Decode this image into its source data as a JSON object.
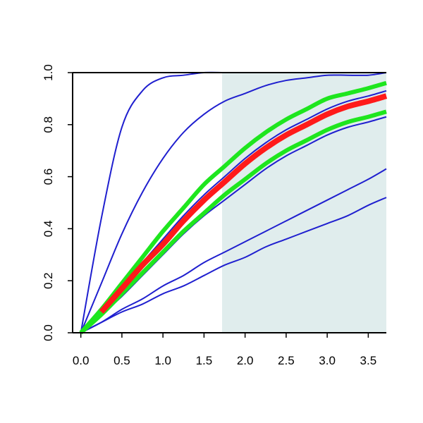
{
  "chart_data": {
    "type": "line",
    "title": "",
    "xlabel": "",
    "ylabel": "",
    "xlim": [
      -0.1,
      3.72
    ],
    "ylim": [
      0.0,
      1.0
    ],
    "grid": false,
    "legend": "none",
    "x_ticks": [
      "0.0",
      "0.5",
      "1.0",
      "1.5",
      "2.0",
      "2.5",
      "3.0",
      "3.5"
    ],
    "y_ticks": [
      "0.0",
      "0.2",
      "0.4",
      "0.6",
      "0.8",
      "1.0"
    ],
    "shaded_region": {
      "x_from": 1.72,
      "x_to": 3.72,
      "color": "#e0eded"
    },
    "colors": {
      "blue": "#1f1fcf",
      "red": "#ff1a1a",
      "green": "#1ee61e",
      "axis": "#000000"
    },
    "x": [
      0.0,
      0.25,
      0.5,
      0.75,
      1.0,
      1.25,
      1.5,
      1.75,
      2.0,
      2.25,
      2.5,
      2.75,
      3.0,
      3.25,
      3.5,
      3.72
    ],
    "series": [
      {
        "color": "blue",
        "width": 2,
        "values": [
          0.0,
          0.44,
          0.79,
          0.93,
          0.98,
          0.99,
          1.0,
          1.0,
          1.0,
          1.0,
          1.0,
          1.0,
          1.0,
          1.0,
          1.0,
          1.0
        ]
      },
      {
        "color": "blue",
        "width": 2,
        "values": [
          0.0,
          0.19,
          0.38,
          0.54,
          0.67,
          0.77,
          0.84,
          0.89,
          0.92,
          0.95,
          0.97,
          0.98,
          0.99,
          0.99,
          0.99,
          1.0
        ]
      },
      {
        "color": "blue",
        "width": 2,
        "values": [
          0.0,
          0.08,
          0.18,
          0.27,
          0.36,
          0.45,
          0.53,
          0.6,
          0.67,
          0.73,
          0.78,
          0.82,
          0.86,
          0.89,
          0.91,
          0.93
        ]
      },
      {
        "color": "blue",
        "width": 2,
        "values": [
          0.0,
          0.07,
          0.14,
          0.22,
          0.3,
          0.38,
          0.45,
          0.51,
          0.57,
          0.63,
          0.68,
          0.72,
          0.76,
          0.79,
          0.81,
          0.83
        ]
      },
      {
        "color": "blue",
        "width": 2,
        "values": [
          0.0,
          0.04,
          0.09,
          0.13,
          0.18,
          0.22,
          0.27,
          0.31,
          0.35,
          0.39,
          0.43,
          0.47,
          0.51,
          0.55,
          0.59,
          0.63
        ]
      },
      {
        "color": "blue",
        "width": 2,
        "values": [
          0.0,
          0.04,
          0.08,
          0.11,
          0.15,
          0.18,
          0.22,
          0.26,
          0.29,
          0.33,
          0.36,
          0.39,
          0.42,
          0.45,
          0.49,
          0.52
        ]
      },
      {
        "color": "green",
        "width": 6,
        "values": [
          0.0,
          0.09,
          0.19,
          0.29,
          0.39,
          0.48,
          0.57,
          0.64,
          0.71,
          0.77,
          0.82,
          0.86,
          0.9,
          0.92,
          0.94,
          0.96
        ]
      },
      {
        "color": "green",
        "width": 6,
        "values": [
          0.0,
          0.07,
          0.15,
          0.23,
          0.31,
          0.39,
          0.46,
          0.53,
          0.59,
          0.65,
          0.7,
          0.74,
          0.78,
          0.81,
          0.83,
          0.85
        ]
      },
      {
        "color": "red",
        "width": 8,
        "from_x": 0.25,
        "values": [
          null,
          0.08,
          0.17,
          0.26,
          0.34,
          0.43,
          0.51,
          0.58,
          0.65,
          0.71,
          0.76,
          0.8,
          0.84,
          0.87,
          0.89,
          0.91
        ]
      }
    ]
  }
}
